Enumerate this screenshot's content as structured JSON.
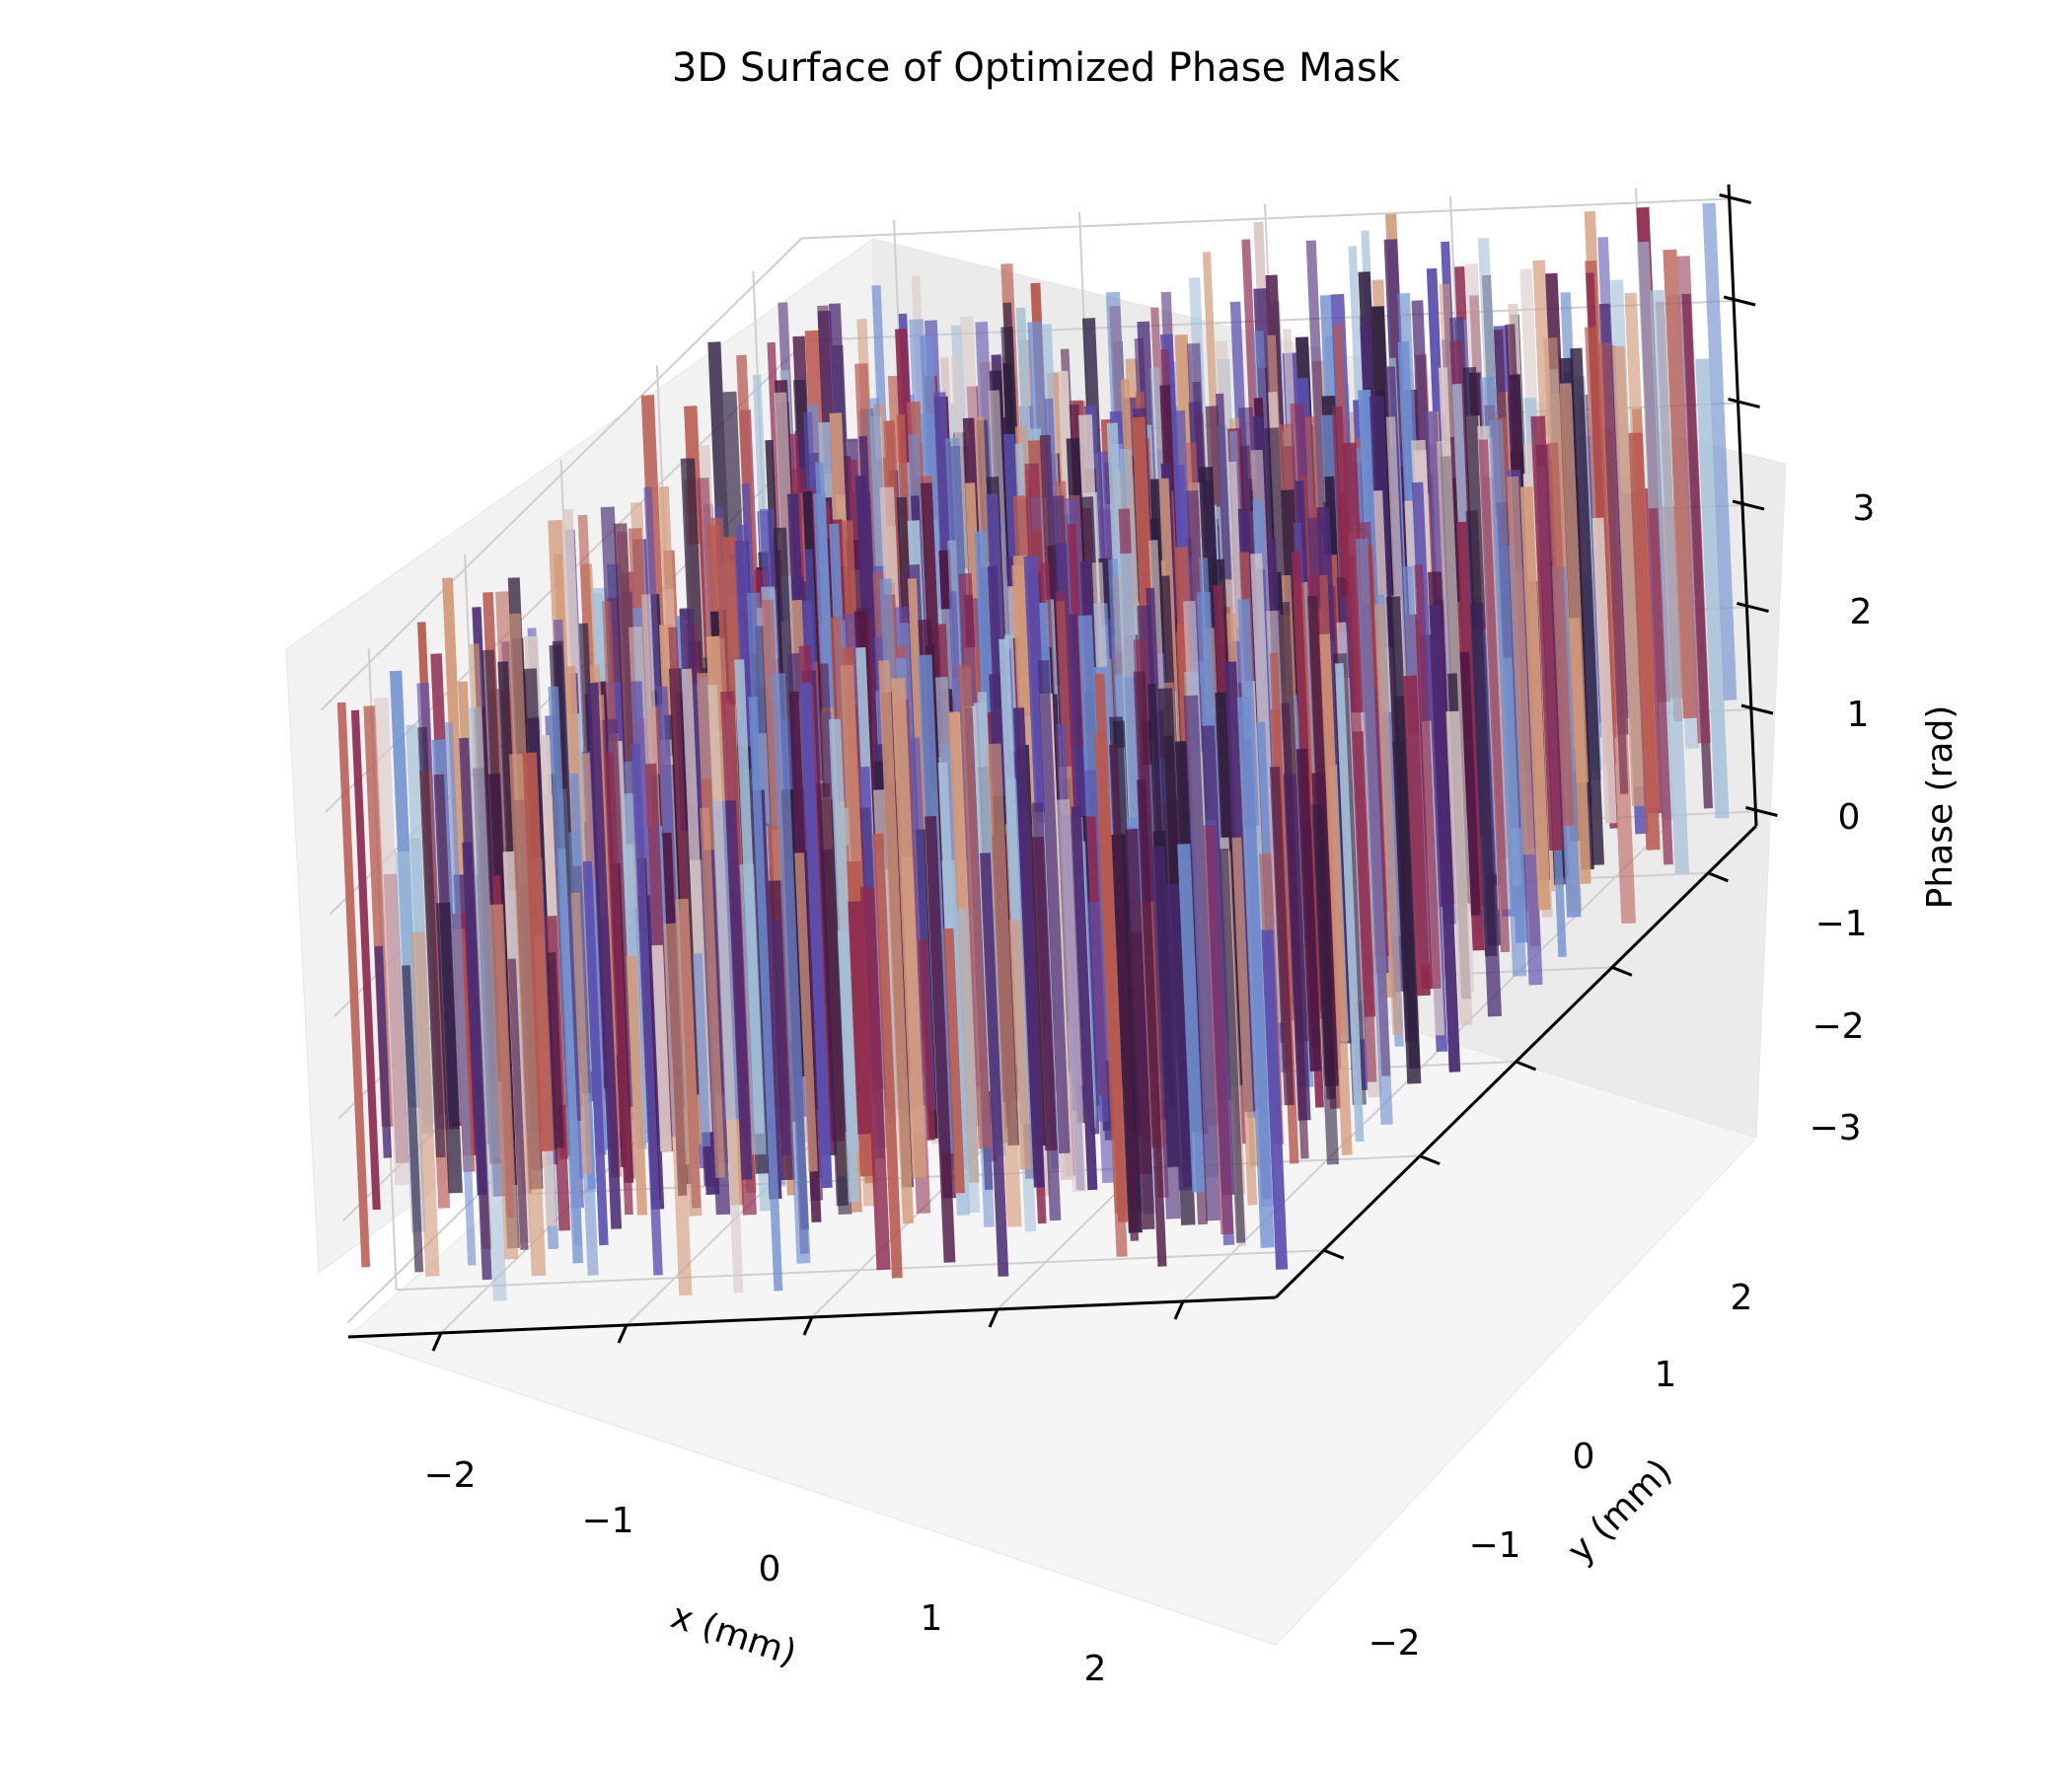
{
  "chart_data": {
    "type": "surface3d",
    "title": "3D Surface of Optimized Phase Mask",
    "xlabel": "x (mm)",
    "ylabel": "y (mm)",
    "zlabel": "Phase (rad)",
    "x_ticks": [
      "−2",
      "−1",
      "0",
      "1",
      "2"
    ],
    "y_ticks": [
      "−2",
      "−1",
      "0",
      "1",
      "2"
    ],
    "z_ticks": [
      "−3",
      "−2",
      "−1",
      "0",
      "1",
      "2",
      "3"
    ],
    "x_range": [
      -2.5,
      2.5
    ],
    "y_range": [
      -2.5,
      2.5
    ],
    "z_range": [
      -3.14,
      3.14
    ],
    "grid": true,
    "colormap": "twilight",
    "colormap_stops": [
      "#2d1e3e",
      "#4a2b73",
      "#5a4fb0",
      "#6f8fd0",
      "#a3bfd8",
      "#d9c9c6",
      "#d39a7a",
      "#b8594f",
      "#8d2a4f",
      "#4f1a45"
    ],
    "surface_description_values": {
      "phase_distribution": "random, wrapped to [−π, π]"
    }
  }
}
